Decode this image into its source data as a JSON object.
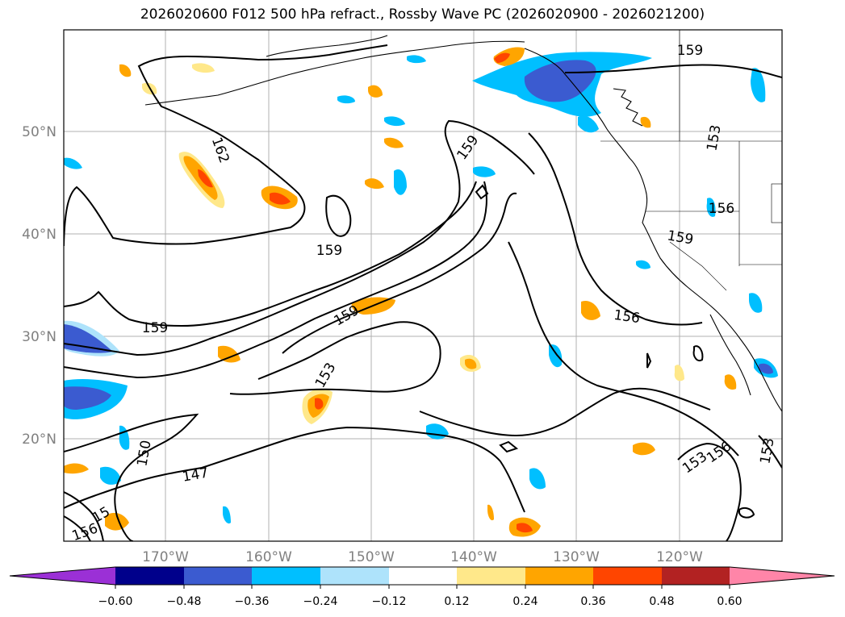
{
  "title": "2026020600 F012 500 hPa refract., Rossby Wave PC (2026020900 - 2026021200)",
  "map": {
    "lat_labels": [
      "50°N",
      "40°N",
      "30°N",
      "20°N"
    ],
    "lon_labels": [
      "170°W",
      "160°W",
      "150°W",
      "140°W",
      "130°W",
      "120°W"
    ],
    "contour_labels": [
      "159",
      "162",
      "159",
      "159",
      "159",
      "159",
      "153",
      "150",
      "147",
      "156",
      "156",
      "159",
      "153",
      "153",
      "156",
      "153",
      "15",
      "156"
    ],
    "colors": {
      "neg_060": "#9b30d6",
      "neg_048": "#00008b",
      "neg_036": "#3b5bd0",
      "neg_024": "#00bfff",
      "neg_012": "#aee3fb",
      "pos_012": "#ffe88a",
      "pos_024": "#ffa500",
      "pos_036": "#ff4500",
      "pos_048": "#b22222",
      "pos_060": "#ff85a8"
    }
  },
  "colorbar": {
    "ticks": [
      "−0.60",
      "−0.48",
      "−0.36",
      "−0.24",
      "−0.12",
      "0.12",
      "0.24",
      "0.36",
      "0.48",
      "0.60"
    ],
    "colors": [
      "#9b30d6",
      "#00008b",
      "#3b5bd0",
      "#00bfff",
      "#aee3fb",
      "#ffffff",
      "#ffe88a",
      "#ffa500",
      "#ff4500",
      "#b22222",
      "#ff85a8"
    ]
  }
}
